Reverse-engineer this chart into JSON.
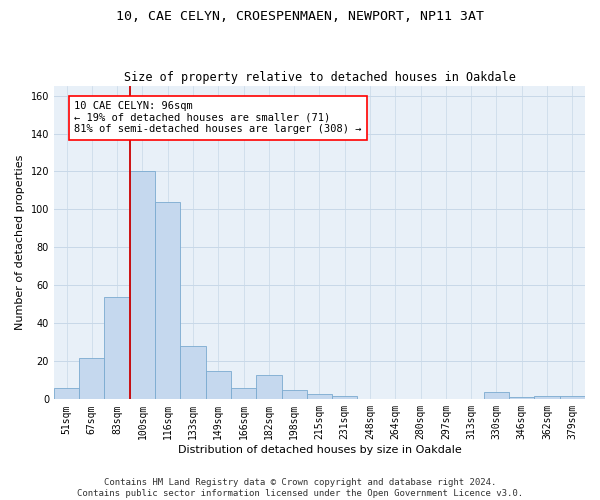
{
  "title_line1": "10, CAE CELYN, CROESPENMAEN, NEWPORT, NP11 3AT",
  "title_line2": "Size of property relative to detached houses in Oakdale",
  "xlabel": "Distribution of detached houses by size in Oakdale",
  "ylabel": "Number of detached properties",
  "bar_labels": [
    "51sqm",
    "67sqm",
    "83sqm",
    "100sqm",
    "116sqm",
    "133sqm",
    "149sqm",
    "166sqm",
    "182sqm",
    "198sqm",
    "215sqm",
    "231sqm",
    "248sqm",
    "264sqm",
    "280sqm",
    "297sqm",
    "313sqm",
    "330sqm",
    "346sqm",
    "362sqm",
    "379sqm"
  ],
  "bar_heights": [
    6,
    22,
    54,
    120,
    104,
    28,
    15,
    6,
    13,
    5,
    3,
    2,
    0,
    0,
    0,
    0,
    0,
    4,
    1,
    2,
    2
  ],
  "bar_color": "#c5d8ee",
  "bar_edgecolor": "#7aaad0",
  "vline_color": "#cc0000",
  "annotation_box_text": "10 CAE CELYN: 96sqm\n← 19% of detached houses are smaller (71)\n81% of semi-detached houses are larger (308) →",
  "ylim": [
    0,
    165
  ],
  "yticks": [
    0,
    20,
    40,
    60,
    80,
    100,
    120,
    140,
    160
  ],
  "grid_color": "#c8d8e8",
  "background_color": "#e8f0f8",
  "footer_line1": "Contains HM Land Registry data © Crown copyright and database right 2024.",
  "footer_line2": "Contains public sector information licensed under the Open Government Licence v3.0.",
  "title_fontsize": 9.5,
  "subtitle_fontsize": 8.5,
  "axis_label_fontsize": 8,
  "tick_fontsize": 7,
  "annotation_fontsize": 7.5,
  "footer_fontsize": 6.5
}
